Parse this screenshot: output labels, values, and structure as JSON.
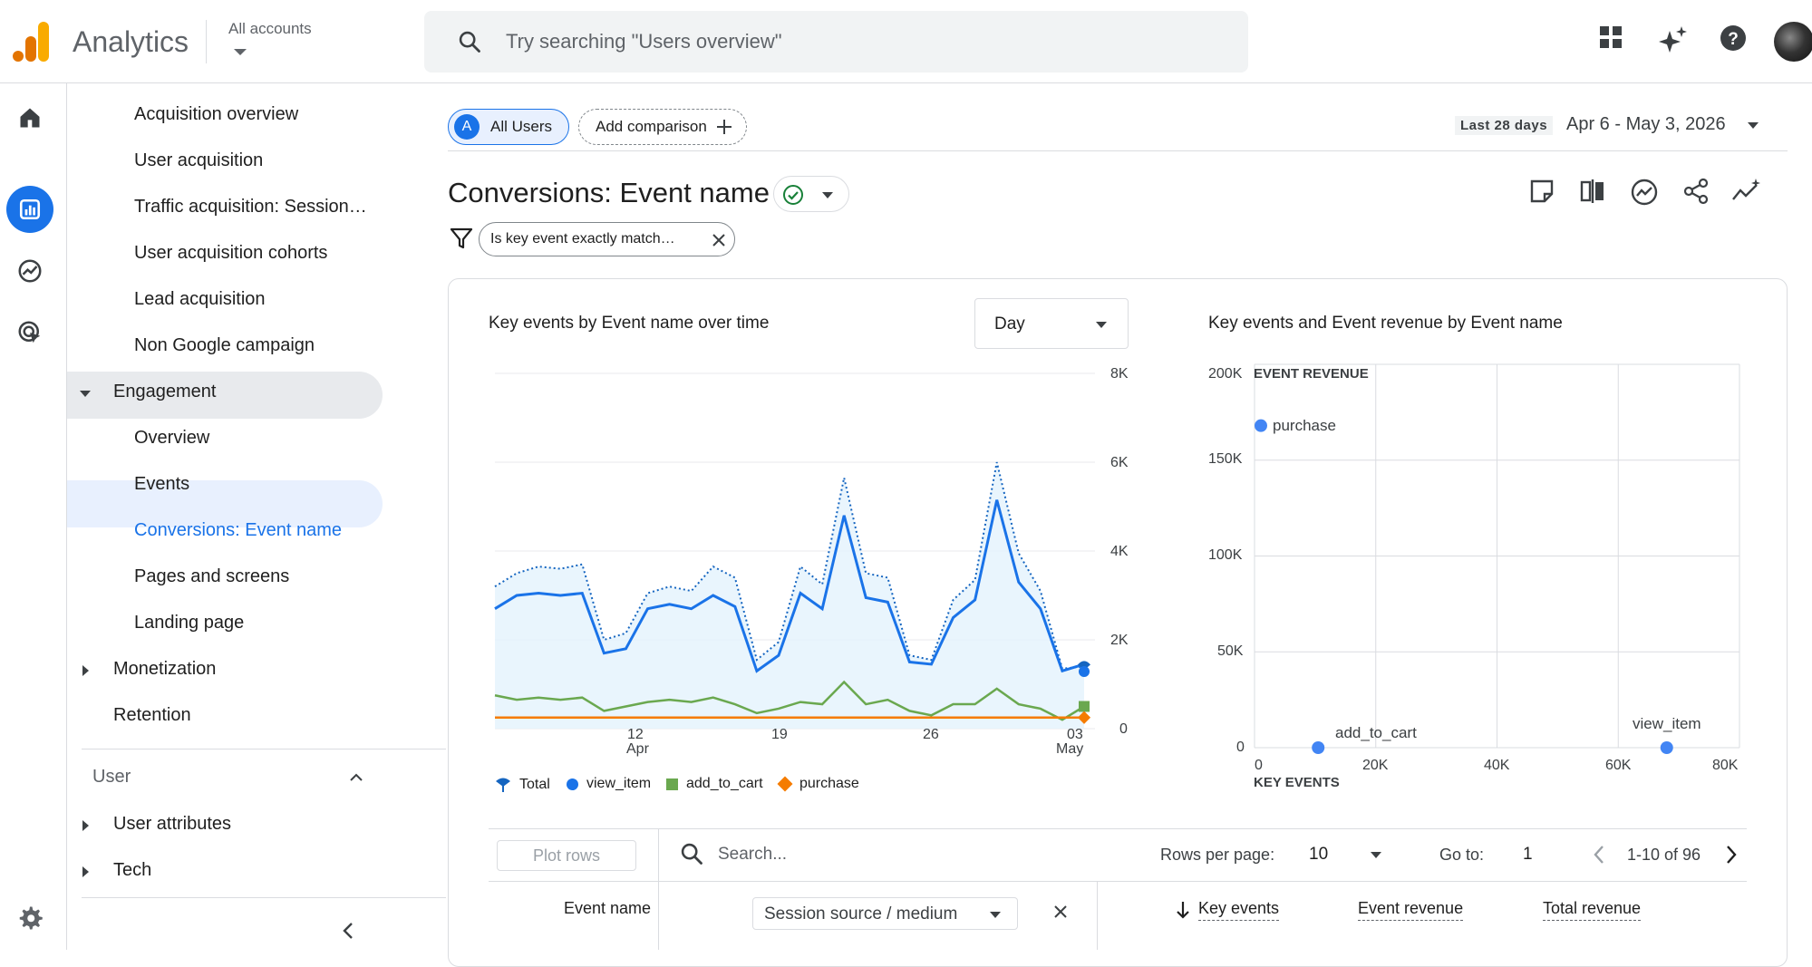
{
  "header": {
    "product": "Analytics",
    "accounts_label": "All accounts",
    "search_placeholder": "Try searching \"Users overview\""
  },
  "colors": {
    "accent": "#1a73e8",
    "view_item": "#1a73e8",
    "add_to_cart": "#6aa84f",
    "purchase": "#f57c00",
    "total": "#1565c0"
  },
  "icons": [
    "home-icon",
    "reports-icon",
    "explore-icon",
    "advertising-icon",
    "gear-icon",
    "apps-grid-icon",
    "sparkle-icon",
    "help-icon"
  ],
  "nav": {
    "items": [
      {
        "label": "Acquisition overview"
      },
      {
        "label": "User acquisition"
      },
      {
        "label": "Traffic acquisition: Session…"
      },
      {
        "label": "User acquisition cohorts"
      },
      {
        "label": "Lead acquisition"
      },
      {
        "label": "Non Google campaign"
      },
      {
        "label": "Engagement"
      },
      {
        "label": "Overview"
      },
      {
        "label": "Events"
      },
      {
        "label": "Conversions: Event name"
      },
      {
        "label": "Pages and screens"
      },
      {
        "label": "Landing page"
      },
      {
        "label": "Monetization"
      },
      {
        "label": "Retention"
      },
      {
        "label": "User"
      },
      {
        "label": "User attributes"
      },
      {
        "label": "Tech"
      }
    ]
  },
  "toolbar": {
    "segment_badge": "A",
    "segment_label": "All Users",
    "add_comparison": "Add comparison",
    "date_prefix": "Last 28 days",
    "date_range": "Apr 6 - May 3, 2026"
  },
  "page": {
    "title": "Conversions: Event name",
    "filter_chip": "Is key event exactly match…"
  },
  "line_chart": {
    "title": "Key events by Event name over time",
    "granularity": "Day",
    "y_ticks": [
      "8K",
      "6K",
      "4K",
      "2K",
      "0"
    ],
    "x_ticks": [
      {
        "day": "12",
        "month": "Apr"
      },
      {
        "day": "19",
        "month": ""
      },
      {
        "day": "26",
        "month": ""
      },
      {
        "day": "03",
        "month": "May"
      }
    ],
    "legend": [
      "Total",
      "view_item",
      "add_to_cart",
      "purchase"
    ]
  },
  "chart_data": [
    {
      "type": "line",
      "title": "Key events by Event name over time",
      "x": [
        "Apr 6",
        "Apr 7",
        "Apr 8",
        "Apr 9",
        "Apr 10",
        "Apr 11",
        "Apr 12",
        "Apr 13",
        "Apr 14",
        "Apr 15",
        "Apr 16",
        "Apr 17",
        "Apr 18",
        "Apr 19",
        "Apr 20",
        "Apr 21",
        "Apr 22",
        "Apr 23",
        "Apr 24",
        "Apr 25",
        "Apr 26",
        "Apr 27",
        "Apr 28",
        "Apr 29",
        "Apr 30",
        "May 1",
        "May 2",
        "May 3"
      ],
      "ylim": [
        0,
        8000
      ],
      "series": [
        {
          "name": "Total",
          "values": [
            3200,
            3500,
            3650,
            3600,
            3700,
            2000,
            2150,
            3050,
            3200,
            3100,
            3650,
            3400,
            1550,
            1950,
            3650,
            3250,
            5650,
            3500,
            3400,
            1650,
            1550,
            2900,
            3350,
            6000,
            3950,
            3100,
            1350,
            1400
          ]
        },
        {
          "name": "view_item",
          "values": [
            2700,
            3000,
            3050,
            3000,
            3050,
            1700,
            1800,
            2700,
            2800,
            2700,
            3000,
            2750,
            1300,
            1650,
            3050,
            2700,
            4800,
            2950,
            2850,
            1500,
            1450,
            2500,
            2900,
            5150,
            3300,
            2700,
            1300,
            1450
          ]
        },
        {
          "name": "add_to_cart",
          "values": [
            750,
            650,
            700,
            650,
            700,
            400,
            500,
            600,
            650,
            600,
            700,
            550,
            350,
            450,
            600,
            550,
            1050,
            550,
            650,
            400,
            300,
            550,
            550,
            900,
            550,
            450,
            200,
            500
          ]
        },
        {
          "name": "purchase",
          "values": [
            250,
            250,
            250,
            250,
            250,
            250,
            250,
            250,
            250,
            250,
            250,
            250,
            250,
            250,
            250,
            250,
            250,
            250,
            250,
            250,
            250,
            250,
            250,
            250,
            250,
            250,
            250,
            250
          ]
        }
      ]
    },
    {
      "type": "scatter",
      "title": "Key events and Event revenue by Event name",
      "xlabel": "KEY EVENTS",
      "ylabel": "EVENT REVENUE",
      "xlim": [
        0,
        80000
      ],
      "ylim": [
        0,
        200000
      ],
      "x_ticks": [
        "0",
        "20K",
        "40K",
        "60K",
        "80K"
      ],
      "y_ticks": [
        "200K",
        "150K",
        "100K",
        "50K",
        "0"
      ],
      "points": [
        {
          "label": "purchase",
          "x": 0,
          "y": 168000
        },
        {
          "label": "add_to_cart",
          "x": 10500,
          "y": 0
        },
        {
          "label": "view_item",
          "x": 68000,
          "y": 0
        }
      ]
    }
  ],
  "table": {
    "plot_rows": "Plot rows",
    "search_placeholder": "Search...",
    "rows_per_page_label": "Rows per page:",
    "rows_per_page": "10",
    "goto_label": "Go to:",
    "goto_value": "1",
    "pagination": "1-10 of 96",
    "col_event_name": "Event name",
    "secondary_dim": "Session source / medium",
    "col_key_events": "Key events",
    "col_event_revenue": "Event revenue",
    "col_total_revenue": "Total revenue"
  }
}
